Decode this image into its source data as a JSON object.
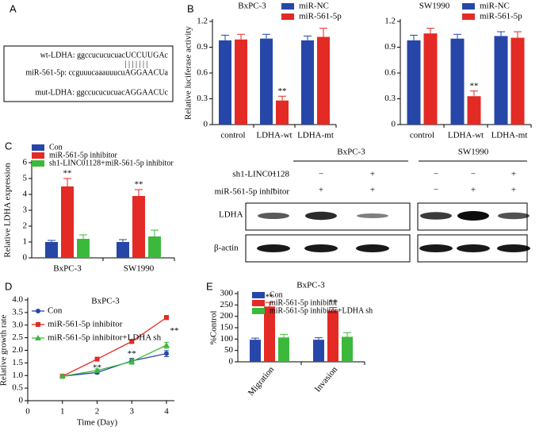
{
  "panels": {
    "letters": [
      "A",
      "B",
      "C",
      "D",
      "E"
    ],
    "sequences": {
      "wt": "wt-LDHA: ggccucucucuacUCCUUGAc",
      "pairs": "| | | | | | |",
      "mir": "miR-561-5p: ccguuucaaauuucuAGGAACUa",
      "mut": "mut-LDHA: ggccucucucuacAGGAACUc"
    },
    "blot": {
      "cells": [
        "BxPC-3",
        "SW1990"
      ],
      "rows": [
        "sh1-LINC01128",
        "miR-561-5p inhibitor"
      ],
      "marks": [
        [
          "−",
          "−",
          "+"
        ],
        [
          "−",
          "+",
          "+"
        ]
      ],
      "bands": [
        "LDHA",
        "β-actin"
      ]
    }
  },
  "chart_data": [
    {
      "type": "bar",
      "title": "BxPC-3",
      "categories": [
        "control",
        "LDHA-wt",
        "LDHA-mt"
      ],
      "ylabel": "Relative luciferase activity",
      "series": [
        {
          "name": "miR-NC",
          "color": "#2647a8",
          "values": [
            0.98,
            1.0,
            0.98
          ],
          "errors": [
            0.06,
            0.05,
            0.05
          ]
        },
        {
          "name": "miR-561-5p",
          "color": "#e32a24",
          "values": [
            0.99,
            0.28,
            1.02
          ],
          "errors": [
            0.06,
            0.05,
            0.1
          ]
        }
      ],
      "ylim": [
        0,
        1.2
      ],
      "yticks": [
        0,
        0.3,
        0.6,
        0.9,
        1.2
      ],
      "annotations": [
        "**"
      ]
    },
    {
      "type": "bar",
      "title": "SW1990",
      "categories": [
        "control",
        "LDHA-wt",
        "LDHA-mt"
      ],
      "ylabel": "",
      "series": [
        {
          "name": "miR-NC",
          "color": "#2647a8",
          "values": [
            0.98,
            1.0,
            1.03
          ],
          "errors": [
            0.06,
            0.05,
            0.05
          ]
        },
        {
          "name": "miR-561-5p",
          "color": "#e32a24",
          "values": [
            1.06,
            0.33,
            1.01
          ],
          "errors": [
            0.06,
            0.06,
            0.07
          ]
        }
      ],
      "ylim": [
        0,
        1.2
      ],
      "yticks": [
        0,
        0.3,
        0.6,
        0.9,
        1.2
      ],
      "annotations": [
        "**"
      ]
    },
    {
      "type": "bar",
      "title": "",
      "categories": [
        "BxPC-3",
        "SW1990"
      ],
      "ylabel": "Relative LDHA expression",
      "series": [
        {
          "name": "Con",
          "color": "#2647a8",
          "values": [
            1.0,
            1.0
          ],
          "errors": [
            0.1,
            0.15
          ]
        },
        {
          "name": "miR-561-5p inhibitor",
          "color": "#e32a24",
          "values": [
            4.5,
            3.9
          ],
          "errors": [
            0.5,
            0.4
          ]
        },
        {
          "name": "sh1-LINC01128+miR-561-5p inhibitor",
          "color": "#3cb93c",
          "values": [
            1.2,
            1.35
          ],
          "errors": [
            0.25,
            0.4
          ]
        }
      ],
      "ylim": [
        0,
        6
      ],
      "yticks": [
        0,
        1,
        2,
        3,
        4,
        5,
        6
      ],
      "annotations": [
        "**",
        "**"
      ]
    },
    {
      "type": "line",
      "title": "BxPC-3",
      "xlabel": "Time (Day)",
      "ylabel": "Relative growth rate",
      "x": [
        1,
        2,
        3,
        4
      ],
      "series": [
        {
          "name": "Con",
          "color": "#2647a8",
          "values": [
            0.97,
            1.12,
            1.58,
            1.87
          ],
          "errors": [
            0.03,
            0.06,
            0.1,
            0.12
          ]
        },
        {
          "name": "miR-561-5p inhibitor",
          "color": "#e32a24",
          "values": [
            0.97,
            1.65,
            2.35,
            3.3
          ],
          "errors": [
            0.03,
            0.05,
            0.08,
            0.08
          ]
        },
        {
          "name": "miR-561-5p inhibitor+LDHA sh",
          "color": "#3cb93c",
          "values": [
            0.97,
            1.2,
            1.55,
            2.2
          ],
          "errors": [
            0.03,
            0.06,
            0.1,
            0.12
          ]
        }
      ],
      "xlim": [
        0,
        4
      ],
      "xticks": [
        0,
        1,
        2,
        3,
        4
      ],
      "ylim": [
        0,
        4
      ],
      "yticks": [
        0,
        0.5,
        {
          "value": 1,
          "label": "1.0"
        },
        1.5,
        {
          "value": 2,
          "label": "2.0"
        },
        2.5,
        {
          "value": 3,
          "label": "3.0"
        },
        3.5,
        {
          "value": 4,
          "label": "4.0"
        }
      ],
      "annotations": [
        "**",
        "**",
        "**"
      ]
    },
    {
      "type": "bar",
      "title": "BxPC-3",
      "categories": [
        "Migration",
        "Invasion"
      ],
      "ylabel": "%Control",
      "series": [
        {
          "name": "Con",
          "color": "#2647a8",
          "values": [
            97,
            97
          ],
          "errors": [
            7,
            9
          ]
        },
        {
          "name": "miR-561-5p inhibitor",
          "color": "#e32a24",
          "values": [
            243,
            225
          ],
          "errors": [
            18,
            14
          ]
        },
        {
          "name": "miR-561-5p inhibitor+LDHA sh",
          "color": "#3cb93c",
          "values": [
            107,
            110
          ],
          "errors": [
            14,
            18
          ]
        }
      ],
      "ylim": [
        0,
        300
      ],
      "yticks": [
        0,
        50,
        100,
        150,
        200,
        250,
        300
      ],
      "annotations": [
        "**",
        "**"
      ]
    }
  ]
}
